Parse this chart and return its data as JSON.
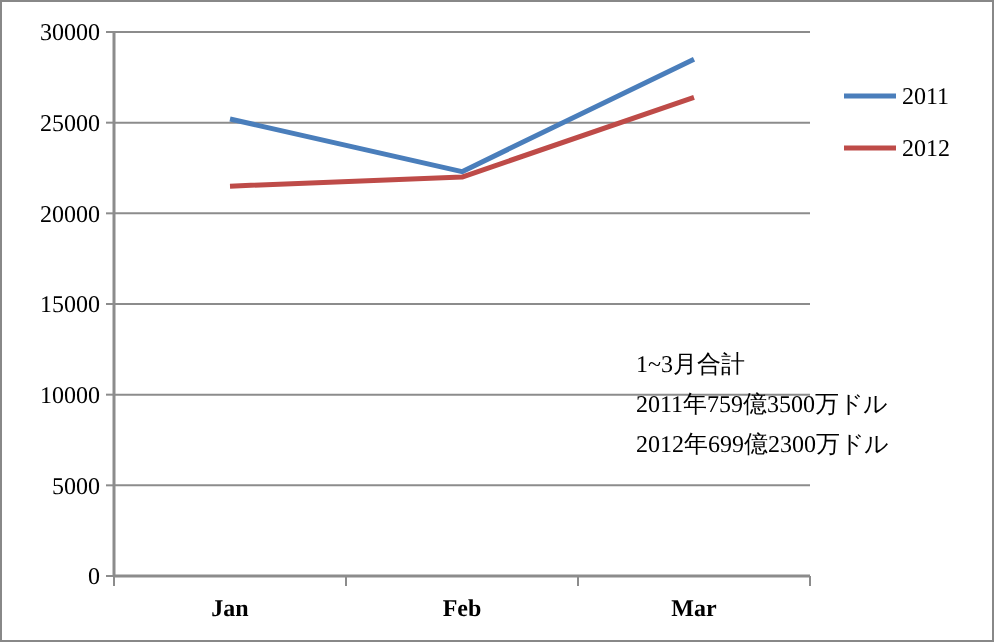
{
  "chart_data": {
    "type": "line",
    "categories": [
      "Jan",
      "Feb",
      "Mar"
    ],
    "series": [
      {
        "name": "2011",
        "color": "#4a7ebb",
        "values": [
          25200,
          22300,
          28500
        ]
      },
      {
        "name": "2012",
        "color": "#be4b48",
        "values": [
          21500,
          22000,
          26400
        ]
      }
    ],
    "ylim": [
      0,
      30000
    ],
    "yticks": [
      0,
      5000,
      10000,
      15000,
      20000,
      25000,
      30000
    ],
    "grid": "y",
    "legend": "right",
    "marker": "none",
    "line_style": "solid",
    "annotations": [
      "1~3月合計",
      "2011年759億3500万ドル",
      "2012年699億2300万ドル"
    ]
  }
}
